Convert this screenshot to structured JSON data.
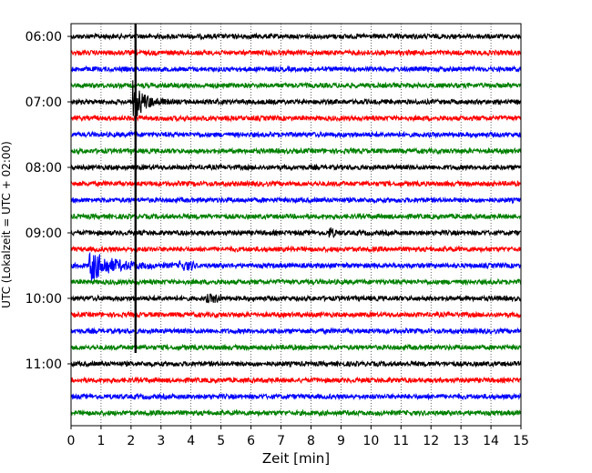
{
  "chart_data": {
    "type": "line",
    "title": "",
    "xlabel": "Zeit  [min]",
    "ylabel": "UTC (Lokalzeit = UTC + 02:00)",
    "xlim": [
      0,
      15
    ],
    "x_ticks": [
      "0",
      "1",
      "2",
      "3",
      "4",
      "5",
      "6",
      "7",
      "8",
      "9",
      "10",
      "11",
      "12",
      "13",
      "14",
      "15"
    ],
    "y_ticks": [
      "06:00",
      "07:00",
      "08:00",
      "09:00",
      "10:00",
      "11:00"
    ],
    "grid": "vertical dotted",
    "trace_interval_minutes": 15,
    "traces": [
      {
        "start": "06:00",
        "color": "#000000"
      },
      {
        "start": "06:15",
        "color": "#ff0000"
      },
      {
        "start": "06:30",
        "color": "#0000ff"
      },
      {
        "start": "06:45",
        "color": "#008000"
      },
      {
        "start": "07:00",
        "color": "#000000"
      },
      {
        "start": "07:15",
        "color": "#ff0000"
      },
      {
        "start": "07:30",
        "color": "#0000ff"
      },
      {
        "start": "07:45",
        "color": "#008000"
      },
      {
        "start": "08:00",
        "color": "#000000"
      },
      {
        "start": "08:15",
        "color": "#ff0000"
      },
      {
        "start": "08:30",
        "color": "#0000ff"
      },
      {
        "start": "08:45",
        "color": "#008000"
      },
      {
        "start": "09:00",
        "color": "#000000"
      },
      {
        "start": "09:15",
        "color": "#ff0000"
      },
      {
        "start": "09:30",
        "color": "#0000ff"
      },
      {
        "start": "09:45",
        "color": "#008000"
      },
      {
        "start": "10:00",
        "color": "#000000"
      },
      {
        "start": "10:15",
        "color": "#ff0000"
      },
      {
        "start": "10:30",
        "color": "#0000ff"
      },
      {
        "start": "10:45",
        "color": "#008000"
      },
      {
        "start": "11:00",
        "color": "#000000"
      },
      {
        "start": "11:15",
        "color": "#ff0000"
      },
      {
        "start": "11:30",
        "color": "#0000ff"
      },
      {
        "start": "11:45",
        "color": "#008000"
      }
    ],
    "events": [
      {
        "trace": "07:00",
        "minute": 2.15,
        "kind": "large quake burst with coda to ~3.2 min"
      },
      {
        "trace": "06:00 - 11:00",
        "minute": 2.15,
        "kind": "vertical spike across traces"
      },
      {
        "trace": "09:30",
        "minute": 0.65,
        "kind": "local event with decaying coda to ~4 min"
      },
      {
        "trace": "09:00",
        "minute": 8.75,
        "kind": "small burst"
      }
    ]
  }
}
